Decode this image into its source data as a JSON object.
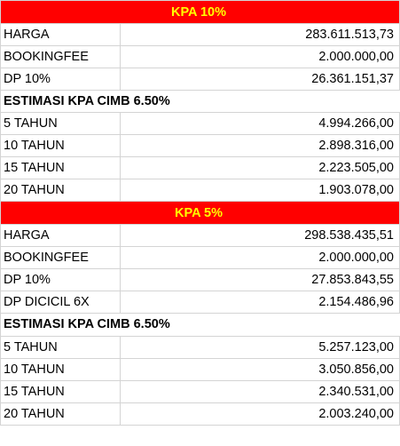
{
  "sections": [
    {
      "title": "KPA 10%",
      "rows": [
        [
          "HARGA",
          "283.611.513,73"
        ],
        [
          "BOOKINGFEE",
          "2.000.000,00"
        ],
        [
          "DP 10%",
          "26.361.151,37"
        ],
        [
          "ESTIMASI KPA CIMB 6.50%"
        ],
        [
          "5 TAHUN",
          "4.994.266,00"
        ],
        [
          "10 TAHUN",
          "2.898.316,00"
        ],
        [
          "15 TAHUN",
          "2.223.505,00"
        ],
        [
          "20 TAHUN",
          "1.903.078,00"
        ]
      ]
    },
    {
      "title": "KPA 5%",
      "rows": [
        [
          "HARGA",
          "298.538.435,51"
        ],
        [
          "BOOKINGFEE",
          "2.000.000,00"
        ],
        [
          "DP 10%",
          "27.853.843,55"
        ],
        [
          "DP DICICIL 6X",
          "2.154.486,96"
        ],
        [
          "ESTIMASI KPA CIMB 6.50%"
        ],
        [
          "5 TAHUN",
          "5.257.123,00"
        ],
        [
          "10 TAHUN",
          "3.050.856,00"
        ],
        [
          "15 TAHUN",
          "2.340.531,00"
        ],
        [
          "20 TAHUN",
          "2.003.240,00"
        ]
      ]
    }
  ]
}
